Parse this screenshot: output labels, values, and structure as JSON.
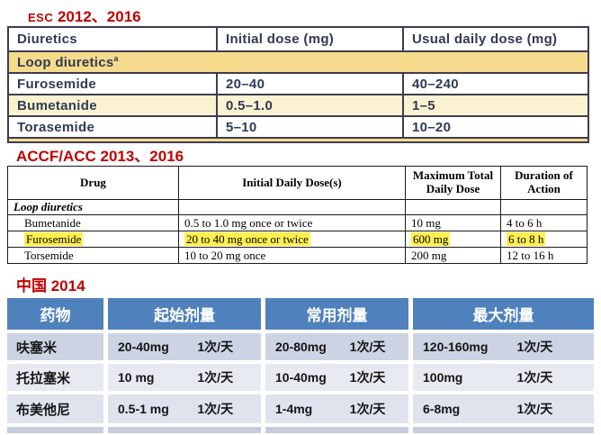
{
  "colors": {
    "red": "#C00000",
    "esc-text": "#303A52",
    "esc-border": "#3D3D52",
    "esc-yellow": "#F6DB8D",
    "esc-cream": "#FBF2D2",
    "accf-border": "#1A1A1A",
    "highlight": "#FFF04D",
    "cn-blue": "#4F81BD",
    "cn-row-dark": "#CCD3E3",
    "cn-row-light": "#E8EAF2",
    "cn-row-mid": "#DEE3EE",
    "cn-strip": "#C4CDDF"
  },
  "esc": {
    "title_prefix": "ESC",
    "title_years": "2012、2016",
    "table": {
      "headers": [
        "Diuretics",
        "Initial dose (mg)",
        "Usual daily dose (mg)"
      ],
      "section_row": "Loop diuretics",
      "section_superscript": "a",
      "rows": [
        {
          "drug": "Furosemide",
          "initial": "20–40",
          "usual": "40–240"
        },
        {
          "drug": "Bumetanide",
          "initial": "0.5–1.0",
          "usual": "1–5"
        },
        {
          "drug": "Torasemide",
          "initial": "5–10",
          "usual": "10–20"
        }
      ]
    }
  },
  "accf": {
    "title": "ACCF/ACC 2013、2016",
    "table": {
      "headers": [
        "Drug",
        "Initial Daily Dose(s)",
        "Maximum Total Daily Dose",
        "Duration of Action"
      ],
      "section_row": "Loop diuretics",
      "rows": [
        {
          "drug": "Bumetanide",
          "initial": "0.5 to 1.0 mg once or twice",
          "max": "10 mg",
          "duration": "4 to 6 h"
        },
        {
          "drug": "Furosemide",
          "initial": "20 to 40 mg once or twice",
          "max": "600 mg",
          "duration": "6 to 8 h"
        },
        {
          "drug": "Torsemide",
          "initial": "10 to 20 mg once",
          "max": "200 mg",
          "duration": "12 to 16 h"
        }
      ]
    }
  },
  "china": {
    "title": "中国 2014",
    "table": {
      "headers": [
        "药物",
        "起始剂量",
        "常用剂量",
        "最大剂量"
      ],
      "rows": [
        {
          "drug": "呋塞米",
          "initial_dose": "20-40mg",
          "initial_freq": "1次/天",
          "usual_dose": "20-80mg",
          "usual_freq": "1次/天",
          "max_dose": "120-160mg",
          "max_freq": "1次/天"
        },
        {
          "drug": "托拉塞米",
          "initial_dose": "10 mg",
          "initial_freq": "1次/天",
          "usual_dose": "10-40mg",
          "usual_freq": "1次/天",
          "max_dose": "100mg",
          "max_freq": "1次/天"
        },
        {
          "drug": "布美他尼",
          "initial_dose": "0.5-1 mg",
          "initial_freq": "1次/天",
          "usual_dose": "1-4mg",
          "usual_freq": "1次/天",
          "max_dose": "6-8mg",
          "max_freq": "1次/天"
        }
      ]
    }
  }
}
